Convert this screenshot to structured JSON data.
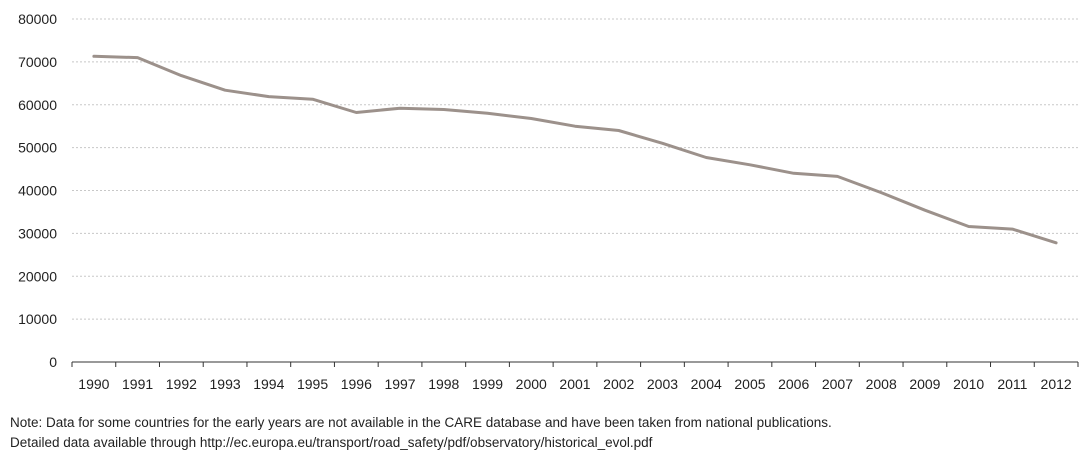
{
  "chart_data": {
    "type": "line",
    "title": "",
    "xlabel": "",
    "ylabel": "",
    "x": [
      "1990",
      "1991",
      "1992",
      "1993",
      "1994",
      "1995",
      "1996",
      "1997",
      "1998",
      "1999",
      "2000",
      "2001",
      "2002",
      "2003",
      "2004",
      "2005",
      "2006",
      "2007",
      "2008",
      "2009",
      "2010",
      "2011",
      "2012"
    ],
    "series": [
      {
        "name": "",
        "color": "#9c918b",
        "values": [
          71300,
          71000,
          66800,
          63400,
          61900,
          61300,
          58200,
          59200,
          58900,
          58000,
          56800,
          55000,
          54000,
          51000,
          47700,
          46000,
          44000,
          43300,
          39500,
          35400,
          31600,
          31000,
          27800
        ]
      }
    ],
    "ylim": [
      0,
      80000
    ],
    "yticks": [
      0,
      10000,
      20000,
      30000,
      40000,
      50000,
      60000,
      70000,
      80000
    ],
    "grid": true,
    "legend": "none"
  },
  "notes": {
    "line1": "Note: Data for some countries for the early years are not available in the CARE database and have been taken from national publications.",
    "line2": "Detailed data available through http://ec.europa.eu/transport/road_safety/pdf/observatory/historical_evol.pdf"
  }
}
